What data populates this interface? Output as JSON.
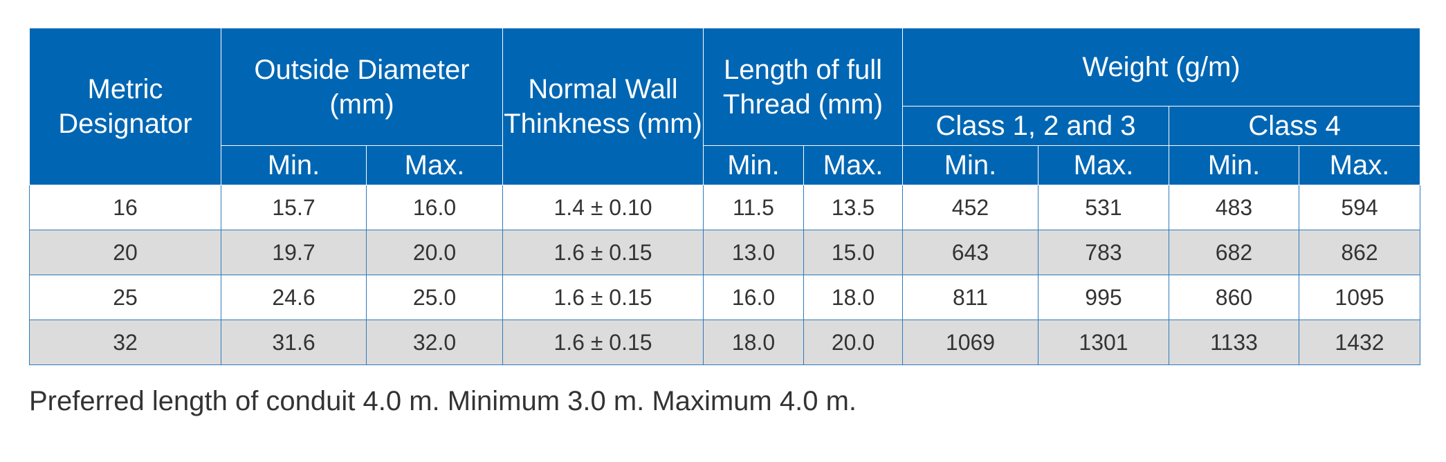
{
  "header": {
    "metric_designator": "Metric Designator",
    "outside_diameter": "Outside Diameter (mm)",
    "wall_thickness": "Normal Wall Thinkness (mm)",
    "thread_length": "Length of full Thread (mm)",
    "weight": "Weight (g/m)",
    "class_123": "Class 1, 2 and 3",
    "class_4": "Class 4",
    "min": "Min.",
    "max": "Max."
  },
  "rows": [
    [
      "16",
      "15.7",
      "16.0",
      "1.4 ± 0.10",
      "11.5",
      "13.5",
      "452",
      "531",
      "483",
      "594"
    ],
    [
      "20",
      "19.7",
      "20.0",
      "1.6 ± 0.15",
      "13.0",
      "15.0",
      "643",
      "783",
      "682",
      "862"
    ],
    [
      "25",
      "24.6",
      "25.0",
      "1.6 ± 0.15",
      "16.0",
      "18.0",
      "811",
      "995",
      "860",
      "1095"
    ],
    [
      "32",
      "31.6",
      "32.0",
      "1.6 ± 0.15",
      "18.0",
      "20.0",
      "1069",
      "1301",
      "1133",
      "1432"
    ]
  ],
  "note": "Preferred length of conduit 4.0 m. Minimum 3.0 m. Maximum 4.0 m."
}
